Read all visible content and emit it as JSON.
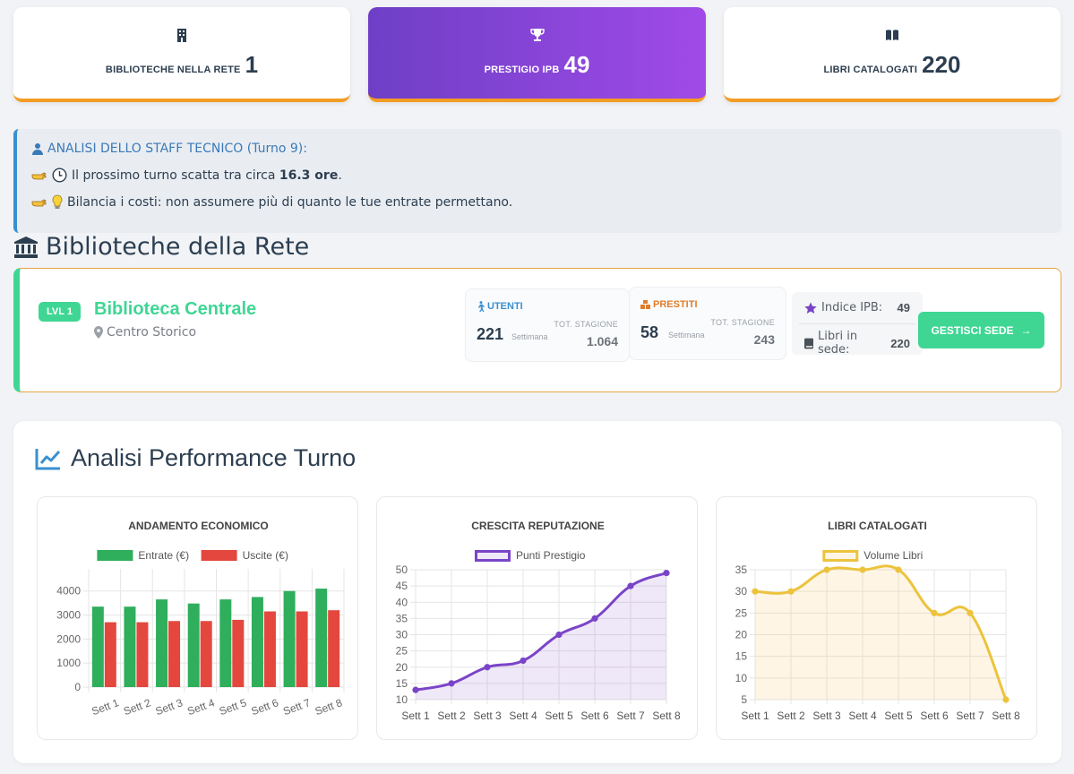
{
  "stats": [
    {
      "label": "BIBLIOTECHE NELLA RETE",
      "value": "1",
      "icon": "building-icon"
    },
    {
      "label": "PRESTIGIO IPB",
      "value": "49",
      "icon": "trophy-icon"
    },
    {
      "label": "LIBRI CATALOGATI",
      "value": "220",
      "icon": "book-icon"
    }
  ],
  "analysis": {
    "header": "ANALISI DELLO STAFF TECNICO (Turno 9):",
    "tip1_pre": "Il prossimo turno scatta tra circa ",
    "tip1_bold": "16.3 ore",
    "tip1_post": ".",
    "tip2": "Bilancia i costi: non assumere più di quanto le tue entrate permettano."
  },
  "network": {
    "title": "Biblioteche della Rete",
    "library": {
      "level": "LVL 1",
      "name": "Biblioteca Centrale",
      "location": "Centro Storico",
      "users": {
        "title": "UTENTI",
        "week": "221",
        "week_label": "Settimana",
        "total_label": "TOT. STAGIONE",
        "total": "1.064"
      },
      "loans": {
        "title": "PRESTITI",
        "week": "58",
        "week_label": "Settimana",
        "total_label": "TOT. STAGIONE",
        "total": "243"
      },
      "ipb_label": "Indice IPB:",
      "ipb_value": "49",
      "books_label": "Libri in sede:",
      "books_value": "220",
      "button": "GESTISCI SEDE"
    }
  },
  "performance": {
    "title": "Analisi Performance Turno"
  },
  "chart_data": [
    {
      "type": "bar",
      "title": "ANDAMENTO ECONOMICO",
      "categories": [
        "Sett 1",
        "Sett 2",
        "Sett 3",
        "Sett 4",
        "Sett 5",
        "Sett 6",
        "Sett 7",
        "Sett 8"
      ],
      "series": [
        {
          "name": "Entrate (€)",
          "color": "#2fae5c",
          "values": [
            3350,
            3350,
            3650,
            3480,
            3650,
            3750,
            4000,
            4100
          ]
        },
        {
          "name": "Uscite (€)",
          "color": "#e4473d",
          "values": [
            2700,
            2700,
            2750,
            2750,
            2800,
            3150,
            3150,
            3200
          ]
        }
      ],
      "ylim": [
        0,
        4400
      ],
      "yticks": [
        0,
        1000,
        2000,
        3000,
        4000
      ],
      "legend": "top",
      "grid": true
    },
    {
      "type": "line",
      "title": "CRESCITA REPUTAZIONE",
      "categories": [
        "Sett 1",
        "Sett 2",
        "Sett 3",
        "Sett 4",
        "Sett 5",
        "Sett 6",
        "Sett 7",
        "Sett 8"
      ],
      "series": [
        {
          "name": "Punti Prestigio",
          "color": "#7a44c8",
          "fill": "rgba(122,68,200,0.12)",
          "values": [
            13,
            15,
            20,
            22,
            30,
            35,
            45,
            49
          ]
        }
      ],
      "ylim": [
        10,
        50
      ],
      "yticks": [
        10,
        15,
        20,
        25,
        30,
        35,
        40,
        45,
        50
      ],
      "legend": "top",
      "grid": true
    },
    {
      "type": "line",
      "title": "LIBRI CATALOGATI",
      "categories": [
        "Sett 1",
        "Sett 2",
        "Sett 3",
        "Sett 4",
        "Sett 5",
        "Sett 6",
        "Sett 7",
        "Sett 8"
      ],
      "series": [
        {
          "name": "Volume Libri",
          "color": "#ecc33c",
          "fill": "rgba(250,205,120,0.2)",
          "values": [
            30,
            30,
            35,
            35,
            35,
            25,
            25,
            5
          ]
        }
      ],
      "ylim": [
        5,
        35
      ],
      "yticks": [
        5,
        10,
        15,
        20,
        25,
        30,
        35
      ],
      "legend": "top",
      "grid": true
    }
  ]
}
